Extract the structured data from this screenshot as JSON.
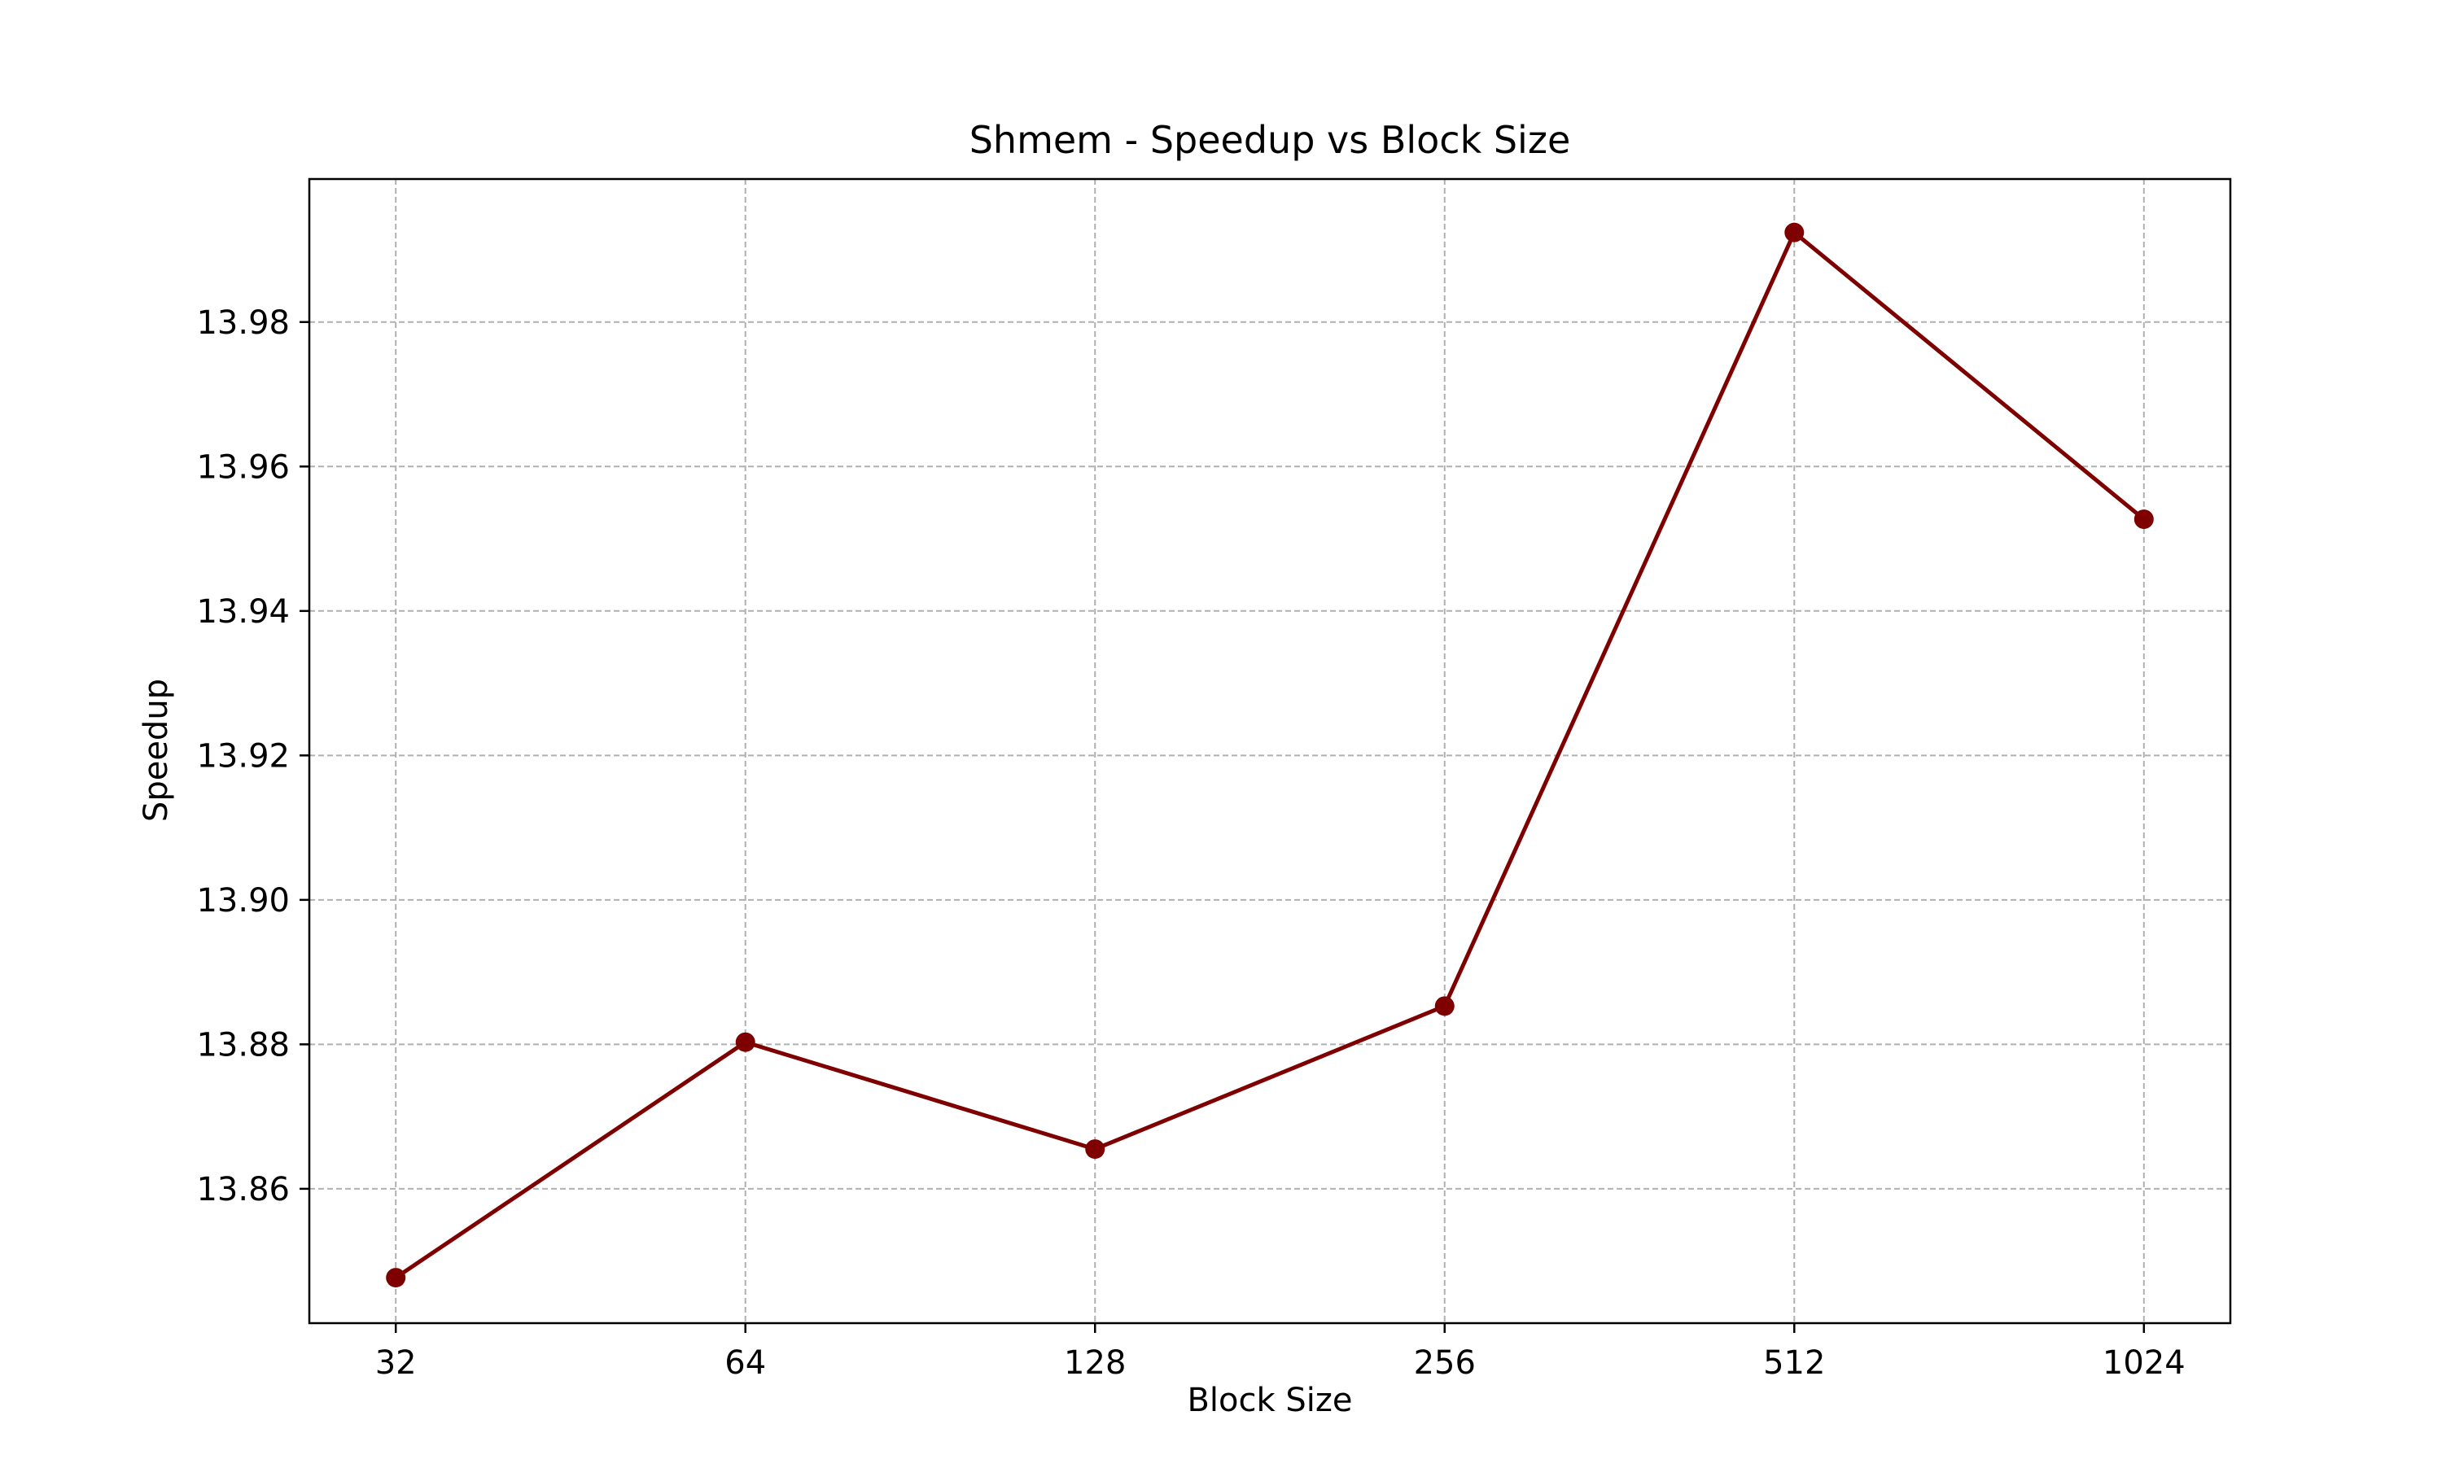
{
  "chart_data": {
    "type": "line",
    "title": "Shmem - Speedup vs Block Size",
    "xlabel": "Block Size",
    "ylabel": "Speedup",
    "categories": [
      "32",
      "64",
      "128",
      "256",
      "512",
      "1024"
    ],
    "series": [
      {
        "values": [
          13.8477,
          13.8803,
          13.8655,
          13.8853,
          13.9924,
          13.9527
        ]
      }
    ],
    "ylim": [
      13.8414,
      13.9998
    ],
    "yticks": [
      "13.86",
      "13.88",
      "13.90",
      "13.92",
      "13.94",
      "13.96",
      "13.98"
    ],
    "grid": true,
    "colors": {
      "line": "#7f0000",
      "marker": "#7f0000",
      "grid": "#b0b0b0",
      "axes": "#000000"
    }
  }
}
